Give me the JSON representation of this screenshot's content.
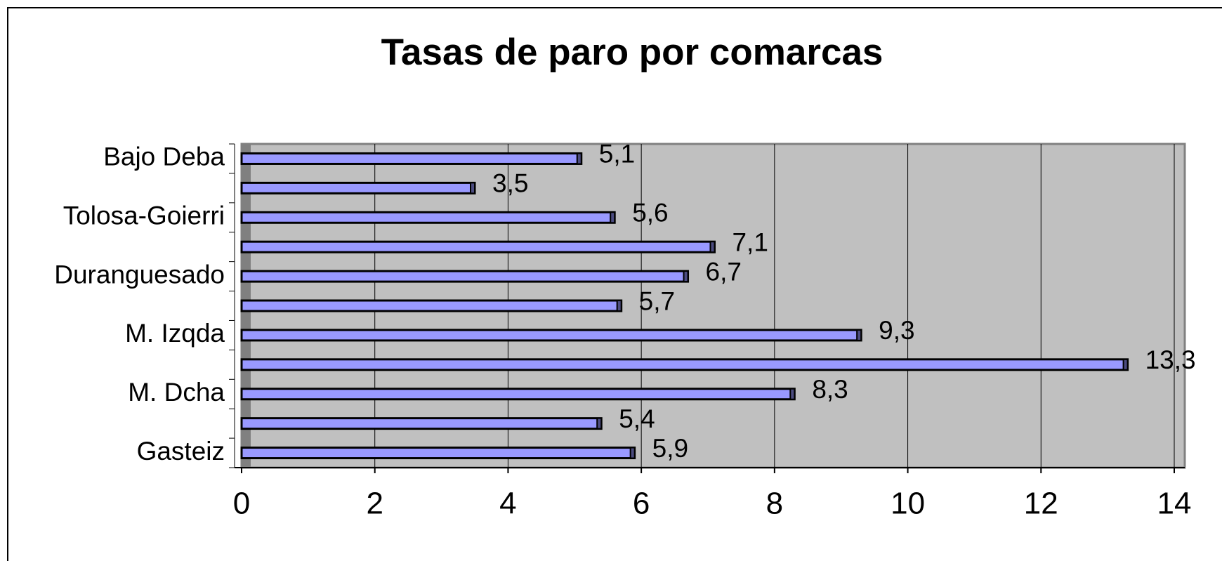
{
  "chart_data": {
    "type": "hbar",
    "title": "Tasas de paro por comarcas",
    "categories": [
      "Gasteiz",
      null,
      "M. Dcha",
      null,
      "M. Izqda",
      null,
      "Duranguesado",
      null,
      "Tolosa-Goierri",
      null,
      "Bajo Deba"
    ],
    "values": [
      5.9,
      5.4,
      8.3,
      13.3,
      9.3,
      5.7,
      6.7,
      7.1,
      5.6,
      3.5,
      5.1
    ],
    "value_labels": [
      "5,9",
      "5,4",
      "8,3",
      "13,3",
      "9,3",
      "5,7",
      "6,7",
      "7,1",
      "5,6",
      "3,5",
      "5,1"
    ],
    "color": "#9999ff",
    "xlim": [
      0,
      14
    ],
    "xticks": [
      0,
      2,
      4,
      6,
      8,
      10,
      12,
      14
    ],
    "grid": true
  }
}
